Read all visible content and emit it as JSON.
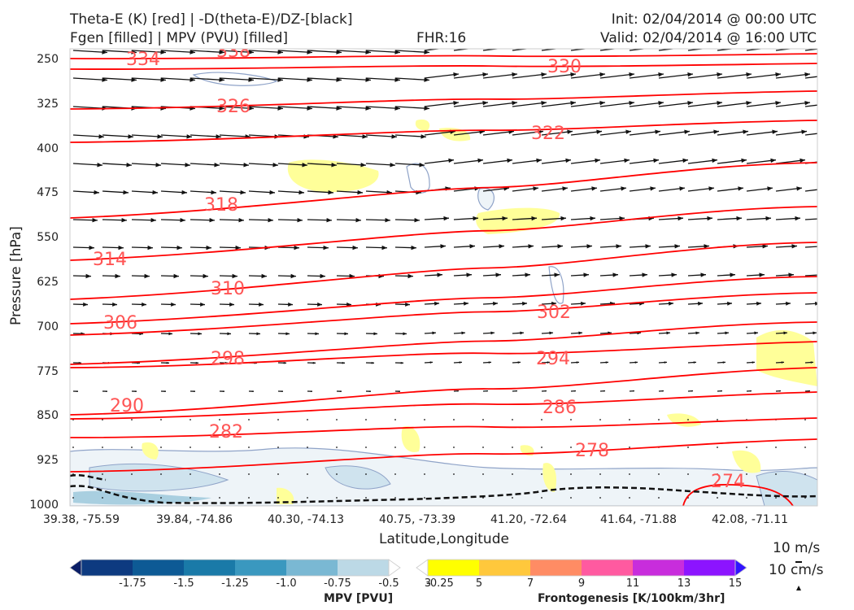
{
  "header": {
    "left_line1": "Theta-E (K) [red] | -D(theta-E)/DZ-[black]",
    "left_line2": "Fgen [filled] | MPV (PVU) [filled]",
    "fhr": "FHR:16",
    "init": "Init: 02/04/2014 @ 00:00 UTC",
    "valid": "Valid: 02/04/2014 @ 16:00 UTC"
  },
  "chart_data": {
    "type": "cross-section",
    "xlabel": "Latitude,Longitude",
    "ylabel": "Pressure [hPa]",
    "x_ticks": [
      "39.38, -75.59",
      "39.84, -74.86",
      "40.30, -74.13",
      "40.75, -73.39",
      "41.20, -72.64",
      "41.64, -71.88",
      "42.08, -71.11"
    ],
    "y_ticks": [
      "250",
      "325",
      "400",
      "475",
      "550",
      "625",
      "700",
      "775",
      "850",
      "925",
      "1000"
    ],
    "y_values": [
      250,
      325,
      400,
      475,
      550,
      625,
      700,
      775,
      850,
      925,
      1000
    ],
    "ylim": [
      1000,
      180
    ],
    "theta_e_contours": [
      {
        "value": 338,
        "label": "338"
      },
      {
        "value": 334,
        "label": "334"
      },
      {
        "value": 330,
        "label": "330"
      },
      {
        "value": 326,
        "label": "326"
      },
      {
        "value": 322,
        "label": "322"
      },
      {
        "value": 318,
        "label": "318"
      },
      {
        "value": 314,
        "label": "314"
      },
      {
        "value": 310,
        "label": "310"
      },
      {
        "value": 306,
        "label": "306"
      },
      {
        "value": 302,
        "label": "302"
      },
      {
        "value": 298,
        "label": "298"
      },
      {
        "value": 294,
        "label": "294"
      },
      {
        "value": 290,
        "label": "290"
      },
      {
        "value": 286,
        "label": "286"
      },
      {
        "value": 282,
        "label": "282"
      },
      {
        "value": 278,
        "label": "278"
      },
      {
        "value": 274,
        "label": "274"
      }
    ],
    "colors": {
      "theta_e": "#ff0000",
      "theta_e_label": "#ff5555",
      "wind": "#111111",
      "mpv_contour": "#8fa3c8",
      "fgen_light": "#ffff99"
    }
  },
  "colorbars": {
    "mpv": {
      "title": "MPV [PVU]",
      "labels": [
        "-1.75",
        "-1.5",
        "-1.25",
        "-1.0",
        "-0.75",
        "-0.5",
        "-0.25"
      ],
      "colors": [
        "#0a1e66",
        "#0d3a80",
        "#0d5a95",
        "#1a7aa8",
        "#3a98bf",
        "#7ab8d3",
        "#bcd9e6",
        "#ffffff"
      ]
    },
    "fgen": {
      "title": "Frontogenesis [K/100km/3hr]",
      "labels": [
        "3",
        "5",
        "7",
        "9",
        "11",
        "13",
        "15"
      ],
      "colors": [
        "#ffffff",
        "#ffff00",
        "#ffc83c",
        "#ff8c64",
        "#ff5aa0",
        "#c82ddc",
        "#8c14ff",
        "#3214ff"
      ]
    }
  },
  "scale": {
    "wind": "10 m/s",
    "vertical": "10 cm/s"
  }
}
